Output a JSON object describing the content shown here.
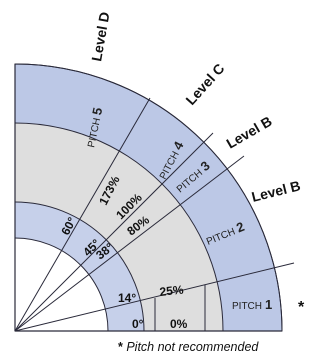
{
  "colors": {
    "band_blue": "#bcc8e6",
    "band_light": "#dde3f3",
    "band_grey": "#dedede",
    "line": "#2a2a3a"
  },
  "levels": [
    {
      "id": "level-d",
      "label": "Level D"
    },
    {
      "id": "level-c",
      "label": "Level C"
    },
    {
      "id": "level-b-upper",
      "label": "Level B"
    },
    {
      "id": "level-b-lower",
      "label": "Level B"
    }
  ],
  "pitches": [
    {
      "prefix": "PITCH",
      "number": "1"
    },
    {
      "prefix": "PITCH",
      "number": "2"
    },
    {
      "prefix": "PITCH",
      "number": "3"
    },
    {
      "prefix": "PITCH",
      "number": "4"
    },
    {
      "prefix": "PITCH",
      "number": "5"
    }
  ],
  "angles": [
    "0°",
    "14°",
    "38°",
    "45°",
    "60°"
  ],
  "percents": [
    "0%",
    "25%",
    "80%",
    "100%",
    "173%"
  ],
  "asterisk": "*",
  "footnote": {
    "mark": "*",
    "text": " Pitch not recommended"
  }
}
